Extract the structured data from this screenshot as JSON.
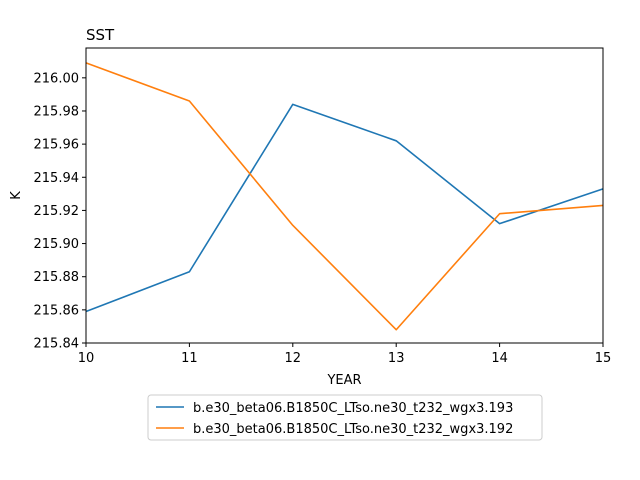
{
  "chart_data": {
    "type": "line",
    "title": "SST",
    "xlabel": "YEAR",
    "ylabel": "K",
    "xlim": [
      10,
      15
    ],
    "ylim": [
      215.84,
      216.018
    ],
    "x_ticks": [
      "10",
      "11",
      "12",
      "13",
      "14",
      "15"
    ],
    "y_ticks": [
      "215.84",
      "215.86",
      "215.88",
      "215.90",
      "215.92",
      "215.94",
      "215.96",
      "215.98",
      "216.00"
    ],
    "x": [
      10,
      11,
      12,
      13,
      14,
      15
    ],
    "series": [
      {
        "name": "b.e30_beta06.B1850C_LTso.ne30_t232_wgx3.193",
        "color": "#1f77b4",
        "values": [
          215.859,
          215.883,
          215.984,
          215.962,
          215.912,
          215.933
        ]
      },
      {
        "name": "b.e30_beta06.B1850C_LTso.ne30_t232_wgx3.192",
        "color": "#ff7f0e",
        "values": [
          216.009,
          215.986,
          215.911,
          215.848,
          215.918,
          215.923
        ]
      }
    ],
    "grid": false,
    "legend_position": "bottom-center-outside"
  }
}
